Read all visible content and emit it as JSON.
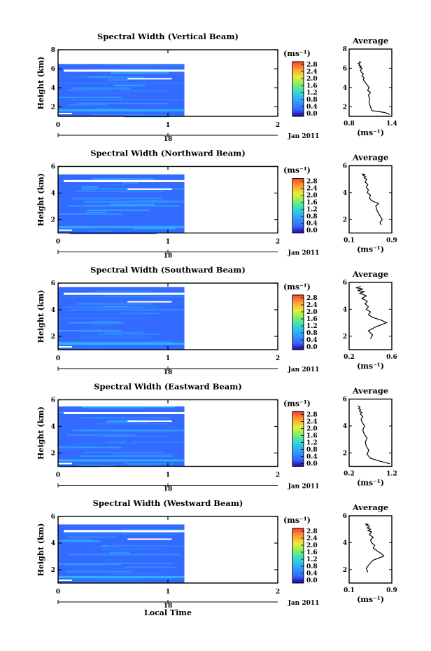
{
  "figure": {
    "date_label": "Jan 2011",
    "xlabel": "Local Time",
    "ylabel": "Height (km)",
    "colorbar_unit": "(ms⁻¹)",
    "colorbar_ticks": [
      "0.0",
      "0.4",
      "0.8",
      "1.2",
      "1.6",
      "2.0",
      "2.4",
      "2.8"
    ],
    "avg_title": "Average",
    "avg_xlabel": "(ms⁻¹)",
    "x_ticks": [
      "0",
      "1",
      "2"
    ],
    "x_sub_tick": "18"
  },
  "chart_data": [
    {
      "type": "heatmap",
      "title": "Spectral Width (Vertical Beam)",
      "xlabel": "Local Time",
      "ylabel": "Height (km)",
      "xlim": [
        0,
        2
      ],
      "ylim": [
        1,
        8
      ],
      "data_xrange": [
        0,
        1.15
      ],
      "top_km": 6.5,
      "colorbar": {
        "min": 0.0,
        "max": 2.8,
        "label": "(ms⁻¹)"
      },
      "yticks": [
        2,
        4,
        6,
        8
      ],
      "description_values": {
        "typical": 0.3,
        "near_ground": 0.8
      },
      "avg": {
        "type": "line",
        "xlim": [
          0.8,
          1.4
        ],
        "xtick_labels": [
          "0.8",
          "1.4"
        ],
        "ylim": [
          1,
          8
        ],
        "yticks": [
          2,
          4,
          6,
          8
        ],
        "x": [
          1.37,
          1.3,
          1.12,
          1.1,
          1.08,
          1.09,
          1.07,
          1.1,
          1.06,
          1.08,
          1.05,
          1.02,
          1.0,
          1.01,
          0.98,
          1.0,
          0.97,
          0.96,
          0.98,
          0.95,
          0.97,
          0.94,
          0.95,
          0.93,
          0.96,
          0.94
        ],
        "y": [
          1.2,
          1.4,
          1.6,
          2.0,
          2.4,
          2.8,
          3.2,
          3.5,
          3.7,
          4.0,
          4.3,
          4.6,
          4.8,
          5.0,
          5.2,
          5.4,
          5.6,
          5.8,
          6.0,
          6.1,
          6.2,
          6.3,
          6.4,
          6.5,
          6.6,
          6.7
        ]
      }
    },
    {
      "type": "heatmap",
      "title": "Spectral Width (Northward Beam)",
      "xlabel": "Local Time",
      "ylabel": "Height (km)",
      "xlim": [
        0,
        2
      ],
      "ylim": [
        1,
        6
      ],
      "data_xrange": [
        0,
        1.15
      ],
      "top_km": 5.4,
      "colorbar": {
        "min": 0.0,
        "max": 2.8,
        "label": "(ms⁻¹)"
      },
      "yticks": [
        2,
        4,
        6
      ],
      "avg": {
        "type": "line",
        "xlim": [
          0.1,
          0.9
        ],
        "xtick_labels": [
          "0.1",
          "0.9"
        ],
        "ylim": [
          1,
          6
        ],
        "yticks": [
          2,
          4,
          6
        ],
        "x": [
          0.7,
          0.68,
          0.72,
          0.66,
          0.62,
          0.6,
          0.65,
          0.52,
          0.48,
          0.5,
          0.44,
          0.46,
          0.42,
          0.45,
          0.4,
          0.43,
          0.38,
          0.41,
          0.36,
          0.39,
          0.34
        ],
        "y": [
          1.6,
          1.8,
          2.0,
          2.4,
          2.7,
          3.0,
          3.2,
          3.4,
          3.6,
          3.8,
          4.0,
          4.2,
          4.4,
          4.6,
          4.8,
          5.0,
          5.1,
          5.2,
          5.3,
          5.35,
          5.4
        ]
      }
    },
    {
      "type": "heatmap",
      "title": "Spectral Width (Southward Beam)",
      "xlabel": "Local Time",
      "ylabel": "Height (km)",
      "xlim": [
        0,
        2
      ],
      "ylim": [
        1,
        6
      ],
      "data_xrange": [
        0,
        1.15
      ],
      "top_km": 5.7,
      "colorbar": {
        "min": 0.0,
        "max": 2.8,
        "label": "(ms⁻¹)"
      },
      "yticks": [
        2,
        4,
        6
      ],
      "avg": {
        "type": "line",
        "xlim": [
          0.2,
          0.6
        ],
        "xtick_labels": [
          "0.2",
          "0.6"
        ],
        "ylim": [
          1,
          6
        ],
        "yticks": [
          2,
          4,
          6
        ],
        "x": [
          0.4,
          0.42,
          0.38,
          0.45,
          0.55,
          0.5,
          0.42,
          0.38,
          0.4,
          0.36,
          0.38,
          0.35,
          0.37,
          0.32,
          0.36,
          0.3,
          0.34,
          0.28,
          0.33,
          0.27,
          0.31
        ],
        "y": [
          1.8,
          2.1,
          2.4,
          2.7,
          3.0,
          3.2,
          3.4,
          3.6,
          3.8,
          4.0,
          4.2,
          4.4,
          4.6,
          4.8,
          5.0,
          5.2,
          5.3,
          5.4,
          5.5,
          5.6,
          5.7
        ]
      }
    },
    {
      "type": "heatmap",
      "title": "Spectral Width (Eastward Beam)",
      "xlabel": "Local Time",
      "ylabel": "Height (km)",
      "xlim": [
        0,
        2
      ],
      "ylim": [
        1,
        6
      ],
      "data_xrange": [
        0,
        1.15
      ],
      "top_km": 5.5,
      "colorbar": {
        "min": 0.0,
        "max": 2.8,
        "label": "(ms⁻¹)"
      },
      "yticks": [
        2,
        4,
        6
      ],
      "avg": {
        "type": "line",
        "xlim": [
          0.2,
          1.2
        ],
        "xtick_labels": [
          "0.2",
          "1.2"
        ],
        "ylim": [
          1,
          6
        ],
        "yticks": [
          2,
          4,
          6
        ],
        "x": [
          1.15,
          0.9,
          0.7,
          0.62,
          0.66,
          0.6,
          0.58,
          0.62,
          0.55,
          0.52,
          0.56,
          0.5,
          0.48,
          0.52,
          0.46,
          0.5,
          0.44,
          0.47,
          0.42,
          0.45,
          0.4
        ],
        "y": [
          1.2,
          1.4,
          1.6,
          1.9,
          2.2,
          2.5,
          2.8,
          3.1,
          3.4,
          3.7,
          4.0,
          4.3,
          4.5,
          4.7,
          4.9,
          5.0,
          5.1,
          5.2,
          5.3,
          5.4,
          5.5
        ]
      }
    },
    {
      "type": "heatmap",
      "title": "Spectral Width (Westward Beam)",
      "xlabel": "Local Time",
      "ylabel": "Height (km)",
      "xlim": [
        0,
        2
      ],
      "ylim": [
        1,
        6
      ],
      "data_xrange": [
        0,
        1.15
      ],
      "top_km": 5.4,
      "colorbar": {
        "min": 0.0,
        "max": 2.8,
        "label": "(ms⁻¹)"
      },
      "yticks": [
        2,
        4,
        6
      ],
      "avg": {
        "type": "line",
        "xlim": [
          0.1,
          0.9
        ],
        "xtick_labels": [
          "0.1",
          "0.9"
        ],
        "ylim": [
          1,
          6
        ],
        "yticks": [
          2,
          4,
          6
        ],
        "x": [
          0.45,
          0.42,
          0.48,
          0.55,
          0.75,
          0.7,
          0.62,
          0.55,
          0.58,
          0.52,
          0.5,
          0.55,
          0.48,
          0.52,
          0.45,
          0.5,
          0.44,
          0.48,
          0.42,
          0.46,
          0.4
        ],
        "y": [
          1.8,
          2.1,
          2.4,
          2.7,
          3.0,
          3.2,
          3.4,
          3.6,
          3.8,
          4.0,
          4.2,
          4.4,
          4.6,
          4.8,
          4.9,
          5.0,
          5.1,
          5.2,
          5.3,
          5.35,
          5.4
        ]
      }
    }
  ]
}
